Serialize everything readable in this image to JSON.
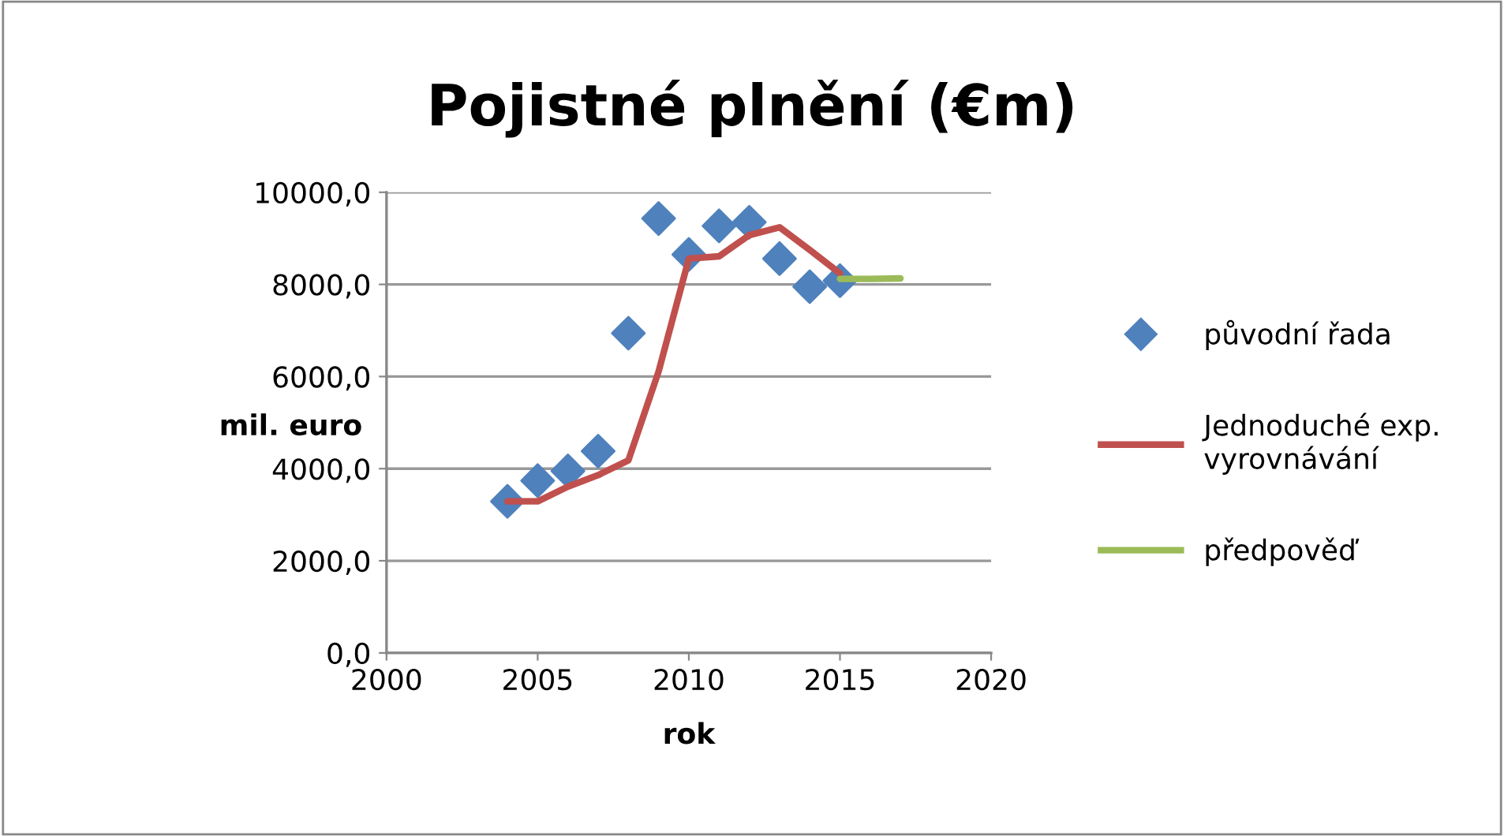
{
  "chart_data": {
    "type": "scatter",
    "title": "Pojistné plnění (€m)",
    "xlabel": "rok",
    "ylabel": "mil. euro",
    "xlim": [
      2000,
      2020
    ],
    "xticks": [
      2000,
      2005,
      2010,
      2015,
      2020
    ],
    "ylim": [
      0,
      10000
    ],
    "yticks": [
      {
        "value": 0,
        "label": "0,0"
      },
      {
        "value": 2000,
        "label": "2000,0"
      },
      {
        "value": 4000,
        "label": "4000,0"
      },
      {
        "value": 6000,
        "label": "6000,0"
      },
      {
        "value": 8000,
        "label": "8000,0"
      },
      {
        "value": 10000,
        "label": "10000,0"
      }
    ],
    "grid": "y",
    "legend": "right",
    "series": [
      {
        "name": "původní řada",
        "marker": "diamond",
        "color": "#4f81bd",
        "x": [
          2004,
          2005,
          2006,
          2007,
          2008,
          2009,
          2010,
          2011,
          2012,
          2013,
          2014,
          2015
        ],
        "values": [
          3290,
          3740,
          3950,
          4380,
          6940,
          9430,
          8650,
          9270,
          9350,
          8560,
          7950,
          8080
        ]
      },
      {
        "name": "Jednoduché exp.\nvyrovnávání",
        "type": "line",
        "marker": "none",
        "color": "#c0504d",
        "x": [
          2004,
          2005,
          2006,
          2007,
          2008,
          2009,
          2010,
          2011,
          2012,
          2013,
          2014,
          2015
        ],
        "values": [
          3290,
          3290,
          3610,
          3860,
          4180,
          6110,
          8560,
          8610,
          9070,
          9240,
          8750,
          8240
        ]
      },
      {
        "name": "předpověď",
        "type": "line",
        "marker": "none",
        "color": "#9bbb59",
        "x": [
          2015,
          2016,
          2017
        ],
        "values": [
          8120,
          8120,
          8130
        ]
      }
    ]
  }
}
